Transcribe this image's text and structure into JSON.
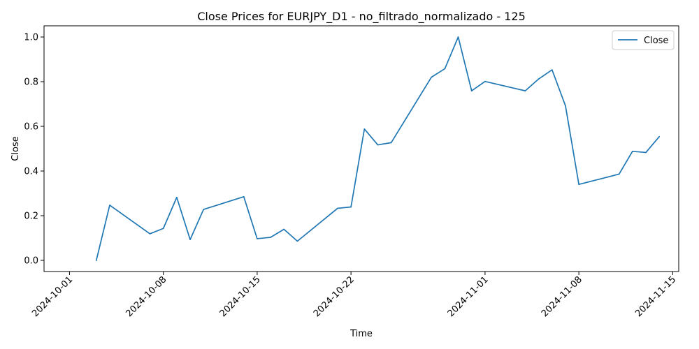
{
  "chart_data": {
    "type": "line",
    "title": "Close Prices for EURJPY_D1 - no_filtrado_normalizado - 125",
    "xlabel": "Time",
    "ylabel": "Close",
    "xlim": [
      "2024-10-01",
      "2024-11-15"
    ],
    "ylim": [
      -0.05,
      1.05
    ],
    "x_ticks": [
      "2024-10-01",
      "2024-10-08",
      "2024-10-15",
      "2024-10-22",
      "2024-11-01",
      "2024-11-08",
      "2024-11-15"
    ],
    "y_ticks": [
      "0.0",
      "0.2",
      "0.4",
      "0.6",
      "0.8",
      "1.0"
    ],
    "legend_position": "top-right",
    "grid": false,
    "series": [
      {
        "name": "Close",
        "color": "#1f77b4",
        "x": [
          "2024-10-03",
          "2024-10-04",
          "2024-10-07",
          "2024-10-08",
          "2024-10-09",
          "2024-10-10",
          "2024-10-11",
          "2024-10-14",
          "2024-10-15",
          "2024-10-16",
          "2024-10-17",
          "2024-10-18",
          "2024-10-21",
          "2024-10-22",
          "2024-10-23",
          "2024-10-24",
          "2024-10-25",
          "2024-10-28",
          "2024-10-29",
          "2024-10-30",
          "2024-10-31",
          "2024-11-01",
          "2024-11-04",
          "2024-11-05",
          "2024-11-06",
          "2024-11-07",
          "2024-11-08",
          "2024-11-11",
          "2024-11-12",
          "2024-11-13",
          "2024-11-14"
        ],
        "values": [
          0.0,
          0.247,
          0.119,
          0.143,
          0.282,
          0.093,
          0.228,
          0.285,
          0.097,
          0.103,
          0.139,
          0.086,
          0.233,
          0.239,
          0.588,
          0.517,
          0.527,
          0.82,
          0.858,
          1.0,
          0.759,
          0.801,
          0.759,
          0.812,
          0.853,
          0.692,
          0.34,
          0.386,
          0.488,
          0.483,
          0.554
        ]
      }
    ]
  }
}
